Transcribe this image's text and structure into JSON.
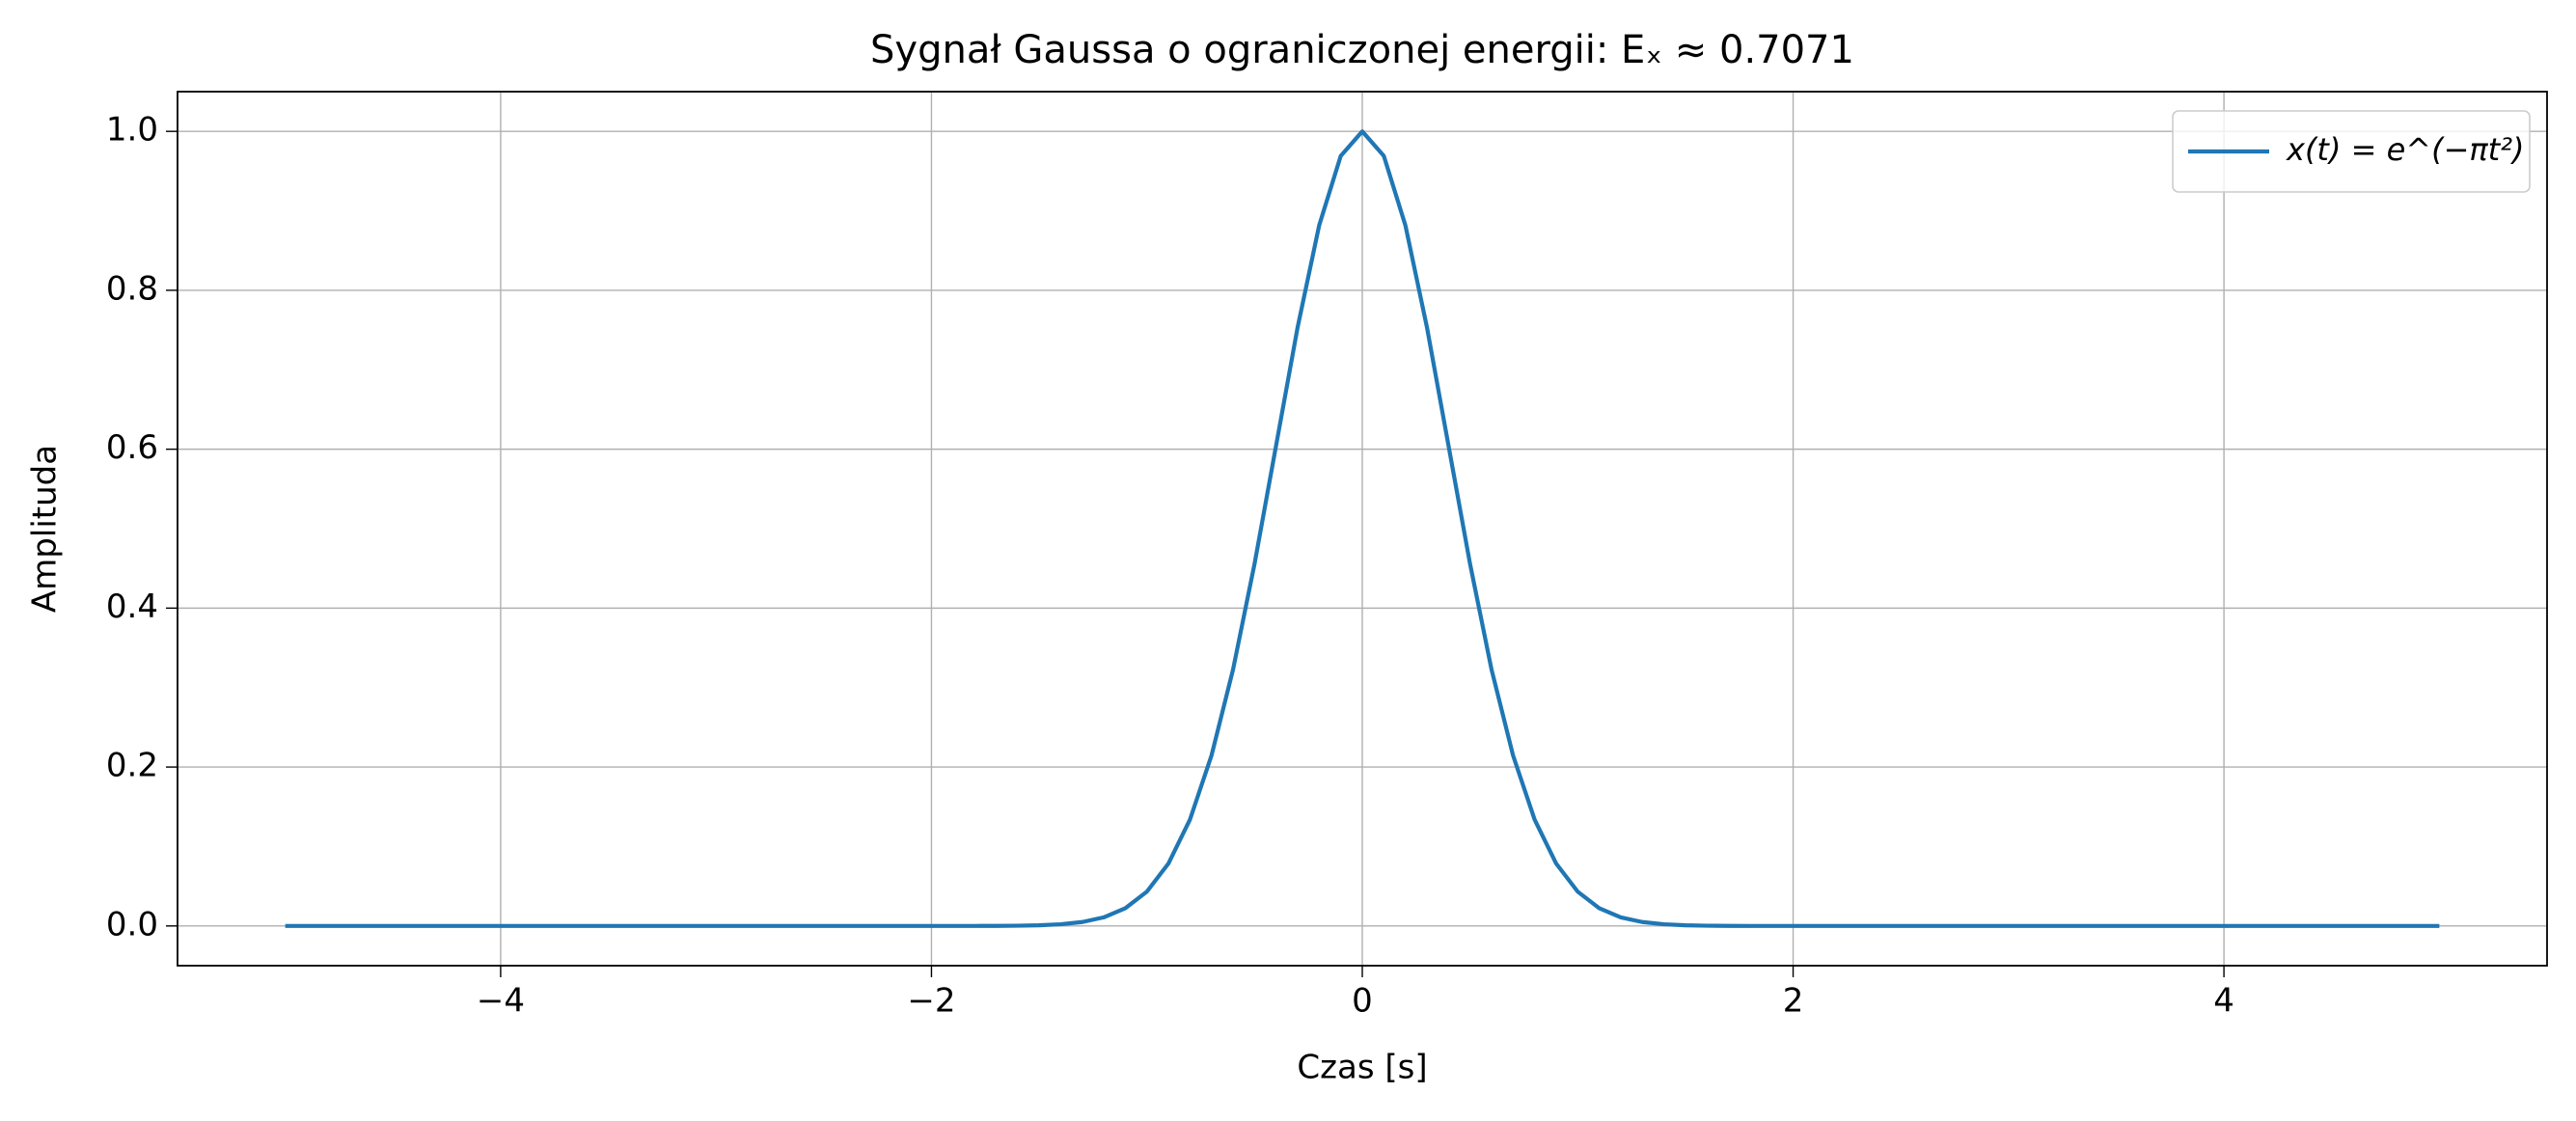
{
  "chart_data": {
    "type": "line",
    "title": "Sygnał Gaussa o ograniczonej energii: Eₓ ≈ 0.7071",
    "x_label": "Czas [s]",
    "y_label": "Amplituda",
    "x": [
      -5,
      -4.5,
      -4,
      -3.5,
      -3,
      -2.5,
      -2,
      -1.9,
      -1.8,
      -1.7,
      -1.6,
      -1.5,
      -1.4,
      -1.3,
      -1.2,
      -1.1,
      -1,
      -0.9,
      -0.8,
      -0.7,
      -0.6,
      -0.5,
      -0.4,
      -0.3,
      -0.2,
      -0.1,
      0,
      0.1,
      0.2,
      0.3,
      0.4,
      0.5,
      0.6,
      0.7,
      0.8,
      0.9,
      1,
      1.1,
      1.2,
      1.3,
      1.4,
      1.5,
      1.6,
      1.7,
      1.8,
      1.9,
      2,
      2.5,
      3,
      3.5,
      4,
      4.5,
      5
    ],
    "series": [
      {
        "name": "x(t) = e^(−πt²)",
        "color": "#1f77b4",
        "values": [
          0,
          0,
          0,
          0,
          0,
          0,
          0,
          1e-05,
          4e-05,
          0.00011,
          0.00032,
          0.00085,
          0.00212,
          0.00494,
          0.01084,
          0.02233,
          0.04321,
          0.07851,
          0.13392,
          0.21451,
          0.32272,
          0.45594,
          0.6049,
          0.7537,
          0.88191,
          0.96907,
          1,
          0.96907,
          0.88191,
          0.7537,
          0.6049,
          0.45594,
          0.32272,
          0.21451,
          0.13392,
          0.07851,
          0.04321,
          0.02233,
          0.01084,
          0.00494,
          0.00212,
          0.00085,
          0.00032,
          0.00011,
          4e-05,
          1e-05,
          0,
          0,
          0,
          0,
          0,
          0,
          0
        ]
      }
    ],
    "xlim": [
      -5.5,
      5.5
    ],
    "xticks": [
      {
        "value": -4,
        "label": "−4"
      },
      {
        "value": -2,
        "label": "−2"
      },
      0,
      2,
      4
    ],
    "ylim": [
      -0.05,
      1.05
    ],
    "yticks": [
      {
        "value": 0,
        "label": "0.0"
      },
      {
        "value": 0.2,
        "label": "0.2"
      },
      {
        "value": 0.4,
        "label": "0.4"
      },
      {
        "value": 0.6,
        "label": "0.6"
      },
      {
        "value": 0.8,
        "label": "0.8"
      },
      {
        "value": 1,
        "label": "1.0"
      }
    ],
    "grid": true,
    "legend": "upper right"
  }
}
